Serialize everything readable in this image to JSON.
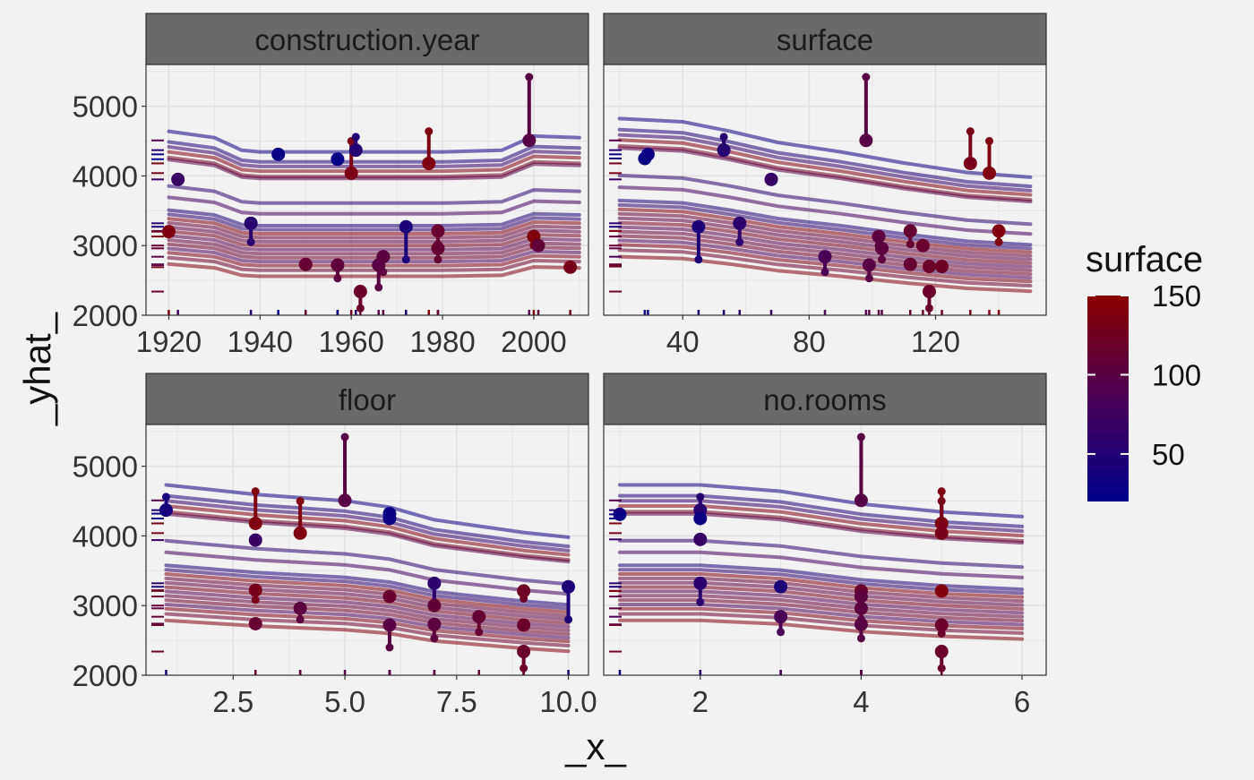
{
  "chart_data": {
    "type": "line",
    "title": "",
    "xlabel": "_x_",
    "ylabel": "_yhat_",
    "ylim": [
      2000,
      5600
    ],
    "y_ticks": [
      2000,
      3000,
      4000,
      5000
    ],
    "grid": true,
    "legend": {
      "title": "surface",
      "position": "right",
      "range": [
        20,
        150
      ],
      "ticks": [
        50,
        100,
        150
      ],
      "colors": {
        "low": "#00008b",
        "mid": "#4b0057",
        "high": "#8b0000"
      }
    },
    "colors": {
      "strip_fill": "#6a6a6a",
      "strip_text": "#1a1a1a",
      "panel_bg": "#f2f2f2",
      "grid": "#e2e2e2",
      "border": "#333333"
    },
    "panels": [
      {
        "variable": "construction.year",
        "xlim": [
          1915,
          2012
        ],
        "x_ticks": [
          1920,
          1940,
          1960,
          1980,
          2000
        ],
        "x_tick_labels": [
          "1920",
          "1940",
          "1960",
          "1980",
          "2000"
        ],
        "profile_x": [
          1920,
          1930,
          1936,
          1940,
          1960,
          1980,
          1993,
          2000,
          2010
        ],
        "profile_mults": [
          1.02,
          1.0,
          0.96,
          0.955,
          0.955,
          0.955,
          0.96,
          1.005,
          1.0
        ],
        "observations": [
          {
            "surface": 137,
            "x": 1920,
            "obs": 3200,
            "pred": 3200
          },
          {
            "surface": 70,
            "x": 1922,
            "obs": 3950,
            "pred": 3950
          },
          {
            "surface": 55,
            "x": 1938,
            "obs": 3320,
            "pred": 3050
          },
          {
            "surface": 28,
            "x": 1944,
            "obs": 4310,
            "pred": 4310
          },
          {
            "surface": 112,
            "x": 1950,
            "obs": 2730,
            "pred": 2730
          },
          {
            "surface": 105,
            "x": 1957,
            "obs": 2720,
            "pred": 2530
          },
          {
            "surface": 26,
            "x": 1957,
            "obs": 4240,
            "pred": 4240
          },
          {
            "surface": 134,
            "x": 1960,
            "obs": 4040,
            "pred": 4500
          },
          {
            "surface": 51,
            "x": 1961,
            "obs": 4370,
            "pred": 4560
          },
          {
            "surface": 118,
            "x": 1962,
            "obs": 2340,
            "pred": 2100
          },
          {
            "surface": 99,
            "x": 1966,
            "obs": 2720,
            "pred": 2400
          },
          {
            "surface": 102,
            "x": 1967,
            "obs": 2840,
            "pred": 2620
          },
          {
            "surface": 43,
            "x": 1972,
            "obs": 3270,
            "pred": 2800
          },
          {
            "surface": 137,
            "x": 1977,
            "obs": 4180,
            "pred": 4640
          },
          {
            "surface": 114,
            "x": 1979,
            "obs": 3210,
            "pred": 3020
          },
          {
            "surface": 112,
            "x": 1979,
            "obs": 2960,
            "pred": 2800
          },
          {
            "surface": 98,
            "x": 1999,
            "obs": 4510,
            "pred": 5420
          },
          {
            "surface": 140,
            "x": 2000,
            "obs": 3130,
            "pred": 3000
          },
          {
            "surface": 108,
            "x": 2001,
            "obs": 3000,
            "pred": 3000
          },
          {
            "surface": 131,
            "x": 2008,
            "obs": 2690,
            "pred": 2690
          }
        ]
      },
      {
        "variable": "surface",
        "xlim": [
          15,
          155
        ],
        "x_ticks": [
          40,
          80,
          120
        ],
        "x_tick_labels": [
          "40",
          "80",
          "120"
        ],
        "profile_x": [
          20,
          40,
          55,
          70,
          90,
          110,
          130,
          150
        ],
        "profile_mults": [
          1.06,
          1.05,
          1.02,
          0.985,
          0.955,
          0.92,
          0.89,
          0.875
        ],
        "observations": [
          {
            "surface": 28,
            "x": 28,
            "obs": 4250,
            "pred": 4250
          },
          {
            "surface": 30,
            "x": 29,
            "obs": 4310,
            "pred": 4310
          },
          {
            "surface": 45,
            "x": 45,
            "obs": 3270,
            "pred": 2800
          },
          {
            "surface": 53,
            "x": 53,
            "obs": 4370,
            "pred": 4560
          },
          {
            "surface": 58,
            "x": 58,
            "obs": 3320,
            "pred": 3050
          },
          {
            "surface": 68,
            "x": 68,
            "obs": 3950,
            "pred": 3950
          },
          {
            "surface": 85,
            "x": 85,
            "obs": 2840,
            "pred": 2620
          },
          {
            "surface": 98,
            "x": 98,
            "obs": 4510,
            "pred": 5420
          },
          {
            "surface": 99,
            "x": 99,
            "obs": 2720,
            "pred": 2530
          },
          {
            "surface": 102,
            "x": 102,
            "obs": 3130,
            "pred": 3000
          },
          {
            "surface": 103,
            "x": 103,
            "obs": 2960,
            "pred": 2800
          },
          {
            "surface": 112,
            "x": 112,
            "obs": 3210,
            "pred": 3020
          },
          {
            "surface": 112,
            "x": 112,
            "obs": 2730,
            "pred": 2730
          },
          {
            "surface": 116,
            "x": 116,
            "obs": 3000,
            "pred": 3000
          },
          {
            "surface": 118,
            "x": 118,
            "obs": 2340,
            "pred": 2100
          },
          {
            "surface": 118,
            "x": 118,
            "obs": 2700,
            "pred": 2700
          },
          {
            "surface": 122,
            "x": 122,
            "obs": 2700,
            "pred": 2700
          },
          {
            "surface": 131,
            "x": 131,
            "obs": 4180,
            "pred": 4640
          },
          {
            "surface": 137,
            "x": 137,
            "obs": 4040,
            "pred": 4500
          },
          {
            "surface": 140,
            "x": 140,
            "obs": 3210,
            "pred": 3050
          }
        ]
      },
      {
        "variable": "floor",
        "xlim": [
          0.55,
          10.45
        ],
        "x_ticks": [
          2.5,
          5.0,
          7.5,
          10.0
        ],
        "x_tick_labels": [
          "2.5",
          "5.0",
          "7.5",
          "10.0"
        ],
        "profile_x": [
          1,
          2,
          3,
          4,
          5,
          6,
          7,
          8,
          9,
          10
        ],
        "profile_mults": [
          1.04,
          1.025,
          1.01,
          1.0,
          0.99,
          0.97,
          0.93,
          0.91,
          0.89,
          0.875
        ],
        "observations": [
          {
            "surface": 40,
            "x": 1,
            "obs": 4370,
            "pred": 4560
          },
          {
            "surface": 137,
            "x": 3,
            "obs": 4180,
            "pred": 4640
          },
          {
            "surface": 70,
            "x": 3,
            "obs": 3940,
            "pred": 3940
          },
          {
            "surface": 131,
            "x": 3,
            "obs": 3220,
            "pred": 3080
          },
          {
            "surface": 112,
            "x": 3,
            "obs": 2740,
            "pred": 2740
          },
          {
            "surface": 137,
            "x": 4,
            "obs": 4040,
            "pred": 4500
          },
          {
            "surface": 102,
            "x": 4,
            "obs": 2960,
            "pred": 2800
          },
          {
            "surface": 98,
            "x": 5,
            "obs": 4510,
            "pred": 5420
          },
          {
            "surface": 28,
            "x": 6,
            "obs": 4320,
            "pred": 4320
          },
          {
            "surface": 30,
            "x": 6,
            "obs": 4250,
            "pred": 4250
          },
          {
            "surface": 116,
            "x": 6,
            "obs": 3130,
            "pred": 3100
          },
          {
            "surface": 99,
            "x": 6,
            "obs": 2720,
            "pred": 2400
          },
          {
            "surface": 58,
            "x": 7,
            "obs": 3320,
            "pred": 3050
          },
          {
            "surface": 108,
            "x": 7,
            "obs": 3000,
            "pred": 3000
          },
          {
            "surface": 103,
            "x": 7,
            "obs": 2730,
            "pred": 2530
          },
          {
            "surface": 112,
            "x": 8,
            "obs": 2840,
            "pred": 2620
          },
          {
            "surface": 122,
            "x": 9,
            "obs": 3210,
            "pred": 3100
          },
          {
            "surface": 118,
            "x": 9,
            "obs": 2720,
            "pred": 2720
          },
          {
            "surface": 118,
            "x": 9,
            "obs": 2340,
            "pred": 2100
          },
          {
            "surface": 45,
            "x": 10,
            "obs": 3270,
            "pred": 2800
          }
        ]
      },
      {
        "variable": "no.rooms",
        "xlim": [
          0.8,
          6.3
        ],
        "x_ticks": [
          2,
          4,
          6
        ],
        "x_tick_labels": [
          "2",
          "4",
          "6"
        ],
        "profile_x": [
          1,
          2,
          3,
          4,
          5,
          6
        ],
        "profile_mults": [
          1.04,
          1.04,
          1.02,
          0.98,
          0.955,
          0.94
        ],
        "observations": [
          {
            "surface": 28,
            "x": 1,
            "obs": 4310,
            "pred": 4310
          },
          {
            "surface": 53,
            "x": 2,
            "obs": 4370,
            "pred": 4560
          },
          {
            "surface": 30,
            "x": 2,
            "obs": 4250,
            "pred": 4250
          },
          {
            "surface": 68,
            "x": 2,
            "obs": 3950,
            "pred": 3950
          },
          {
            "surface": 58,
            "x": 2,
            "obs": 3320,
            "pred": 3050
          },
          {
            "surface": 45,
            "x": 3,
            "obs": 3270,
            "pred": 3270
          },
          {
            "surface": 85,
            "x": 3,
            "obs": 2840,
            "pred": 2620
          },
          {
            "surface": 98,
            "x": 4,
            "obs": 4510,
            "pred": 5420
          },
          {
            "surface": 114,
            "x": 4,
            "obs": 3210,
            "pred": 3210
          },
          {
            "surface": 102,
            "x": 4,
            "obs": 3130,
            "pred": 3130
          },
          {
            "surface": 103,
            "x": 4,
            "obs": 2960,
            "pred": 2800
          },
          {
            "surface": 99,
            "x": 4,
            "obs": 2730,
            "pred": 2530
          },
          {
            "surface": 137,
            "x": 5,
            "obs": 4180,
            "pred": 4640
          },
          {
            "surface": 131,
            "x": 5,
            "obs": 4040,
            "pred": 4500
          },
          {
            "surface": 140,
            "x": 5,
            "obs": 3210,
            "pred": 3210
          },
          {
            "surface": 118,
            "x": 5,
            "obs": 2720,
            "pred": 2600
          },
          {
            "surface": 118,
            "x": 5,
            "obs": 2340,
            "pred": 2100
          }
        ]
      }
    ],
    "profile_base_levels": [
      {
        "surface": 30,
        "level": 4550
      },
      {
        "surface": 46,
        "level": 4400
      },
      {
        "surface": 65,
        "level": 4330
      },
      {
        "surface": 140,
        "level": 4260
      },
      {
        "surface": 128,
        "level": 4180
      },
      {
        "surface": 100,
        "level": 4150
      },
      {
        "surface": 55,
        "level": 3780
      },
      {
        "surface": 75,
        "level": 3620
      },
      {
        "surface": 45,
        "level": 3440
      },
      {
        "surface": 58,
        "level": 3380
      },
      {
        "surface": 140,
        "level": 3320
      },
      {
        "surface": 112,
        "level": 3260
      },
      {
        "surface": 102,
        "level": 3200
      },
      {
        "surface": 130,
        "level": 3140
      },
      {
        "surface": 95,
        "level": 3080
      },
      {
        "surface": 110,
        "level": 3020
      },
      {
        "surface": 120,
        "level": 2960
      },
      {
        "surface": 85,
        "level": 2900
      },
      {
        "surface": 135,
        "level": 2840
      },
      {
        "surface": 118,
        "level": 2770
      },
      {
        "surface": 140,
        "level": 2680
      }
    ]
  }
}
